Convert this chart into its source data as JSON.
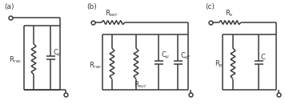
{
  "bg_color": "#ffffff",
  "line_color": "#3a3a3a",
  "line_width": 1.1,
  "label_a": "(a)",
  "label_b": "(b)",
  "label_c": "(c)",
  "label_Rrec_a": "R$_{rec}$",
  "label_Cmu_a": "C$_{\\mu}$",
  "label_Rser": "R$_{ser}$",
  "label_Rrec_b": "R$_{rec}$",
  "label_Rsur": "R$_{sur}$",
  "label_Cmu_b": "C$_{\\mu}$",
  "label_Cdl": "C$_{dl}$",
  "label_Rs": "R$_{s}$",
  "label_Rp": "R$_{p}$",
  "label_C": "C",
  "font_size": 6.0
}
